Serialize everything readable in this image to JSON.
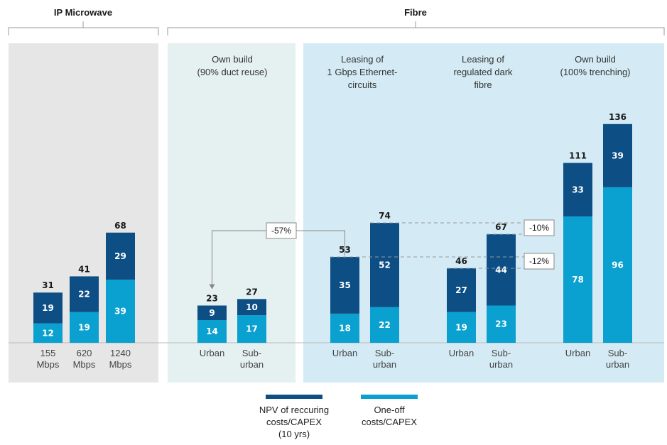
{
  "chart_data": {
    "type": "bar",
    "stacked": true,
    "group_titles": {
      "ip_microwave": "IP Microwave",
      "fibre": "Fibre"
    },
    "panels": [
      {
        "id": "ipm",
        "title_lines": [],
        "categories": [
          [
            "155",
            "Mbps"
          ],
          [
            "620",
            "Mbps"
          ],
          [
            "1240",
            "Mbps"
          ]
        ],
        "recurring": [
          19,
          22,
          29
        ],
        "oneoff": [
          12,
          19,
          39
        ],
        "totals": [
          31,
          41,
          68
        ]
      },
      {
        "id": "own_duct",
        "title_lines": [
          "Own build",
          "(90% duct reuse)"
        ],
        "categories": [
          [
            "Urban"
          ],
          [
            "Sub-",
            "urban"
          ]
        ],
        "recurring": [
          9,
          10
        ],
        "oneoff": [
          14,
          17
        ],
        "totals": [
          23,
          27
        ]
      },
      {
        "id": "leasing_eth",
        "title_lines": [
          "Leasing of",
          "1 Gbps Ethernet-",
          "circuits"
        ],
        "categories": [
          [
            "Urban"
          ],
          [
            "Sub-",
            "urban"
          ]
        ],
        "recurring": [
          35,
          52
        ],
        "oneoff": [
          18,
          22
        ],
        "totals": [
          53,
          74
        ]
      },
      {
        "id": "leasing_dark",
        "title_lines": [
          "Leasing of",
          "regulated dark",
          "fibre"
        ],
        "categories": [
          [
            "Urban"
          ],
          [
            "Sub-",
            "urban"
          ]
        ],
        "recurring": [
          27,
          44
        ],
        "oneoff": [
          19,
          23
        ],
        "totals": [
          46,
          67
        ]
      },
      {
        "id": "own_trench",
        "title_lines": [
          "Own build",
          "(100% trenching)"
        ],
        "categories": [
          [
            "Urban"
          ],
          [
            "Sub-",
            "urban"
          ]
        ],
        "recurring": [
          33,
          39
        ],
        "oneoff": [
          78,
          96
        ],
        "totals": [
          111,
          136
        ]
      }
    ],
    "annotations": [
      {
        "label": "-57%",
        "from": "leasing_eth:0",
        "to": "own_duct:0"
      },
      {
        "label": "-10%",
        "compare": [
          "leasing_eth:1",
          "leasing_dark:1"
        ]
      },
      {
        "label": "-12%",
        "compare": [
          "leasing_eth:0",
          "leasing_dark:0"
        ]
      }
    ],
    "legend": [
      {
        "name": "NPV of reccuring costs/CAPEX (10 yrs)",
        "lines": [
          "NPV of reccuring",
          "costs/CAPEX",
          "(10 yrs)"
        ],
        "color": "#0d4e85"
      },
      {
        "name": "One-off costs/CAPEX",
        "lines": [
          "One-off",
          "costs/CAPEX"
        ],
        "color": "#0aa0cf"
      }
    ],
    "colors": {
      "recurring": "#0d4e85",
      "oneoff": "#0aa0cf",
      "panel_grey": "#e6e6e6",
      "panel_pale": "#e5f0f0",
      "panel_blue": "#d4ebf5"
    },
    "units": "value"
  }
}
